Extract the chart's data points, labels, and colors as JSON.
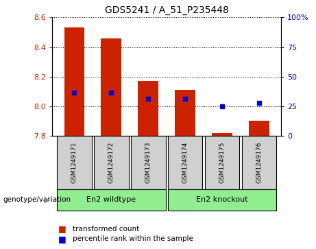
{
  "title": "GDS5241 / A_51_P235448",
  "samples": [
    "GSM1249171",
    "GSM1249172",
    "GSM1249173",
    "GSM1249174",
    "GSM1249175",
    "GSM1249176"
  ],
  "red_values": [
    8.53,
    8.46,
    8.17,
    8.11,
    7.82,
    7.9
  ],
  "red_base": 7.8,
  "blue_values": [
    8.09,
    8.09,
    8.05,
    8.05,
    8.0,
    8.02
  ],
  "ylim": [
    7.8,
    8.6
  ],
  "yticks_left": [
    7.8,
    8.0,
    8.2,
    8.4,
    8.6
  ],
  "yticks_right": [
    0,
    25,
    50,
    75,
    100
  ],
  "ytick_labels_right": [
    "0",
    "25",
    "50",
    "75",
    "100%"
  ],
  "groups": [
    {
      "label": "En2 wildtype",
      "indices": [
        0,
        1,
        2
      ]
    },
    {
      "label": "En2 knockout",
      "indices": [
        3,
        4,
        5
      ]
    }
  ],
  "group_label_prefix": "genotype/variation",
  "legend_red": "transformed count",
  "legend_blue": "percentile rank within the sample",
  "bar_width": 0.55,
  "axis_bg": "#ffffff",
  "red_color": "#cc2200",
  "blue_color": "#0000cc",
  "sample_box_color": "#d0d0d0",
  "genotype_bg": "#90EE90",
  "arrow_color": "#888888"
}
